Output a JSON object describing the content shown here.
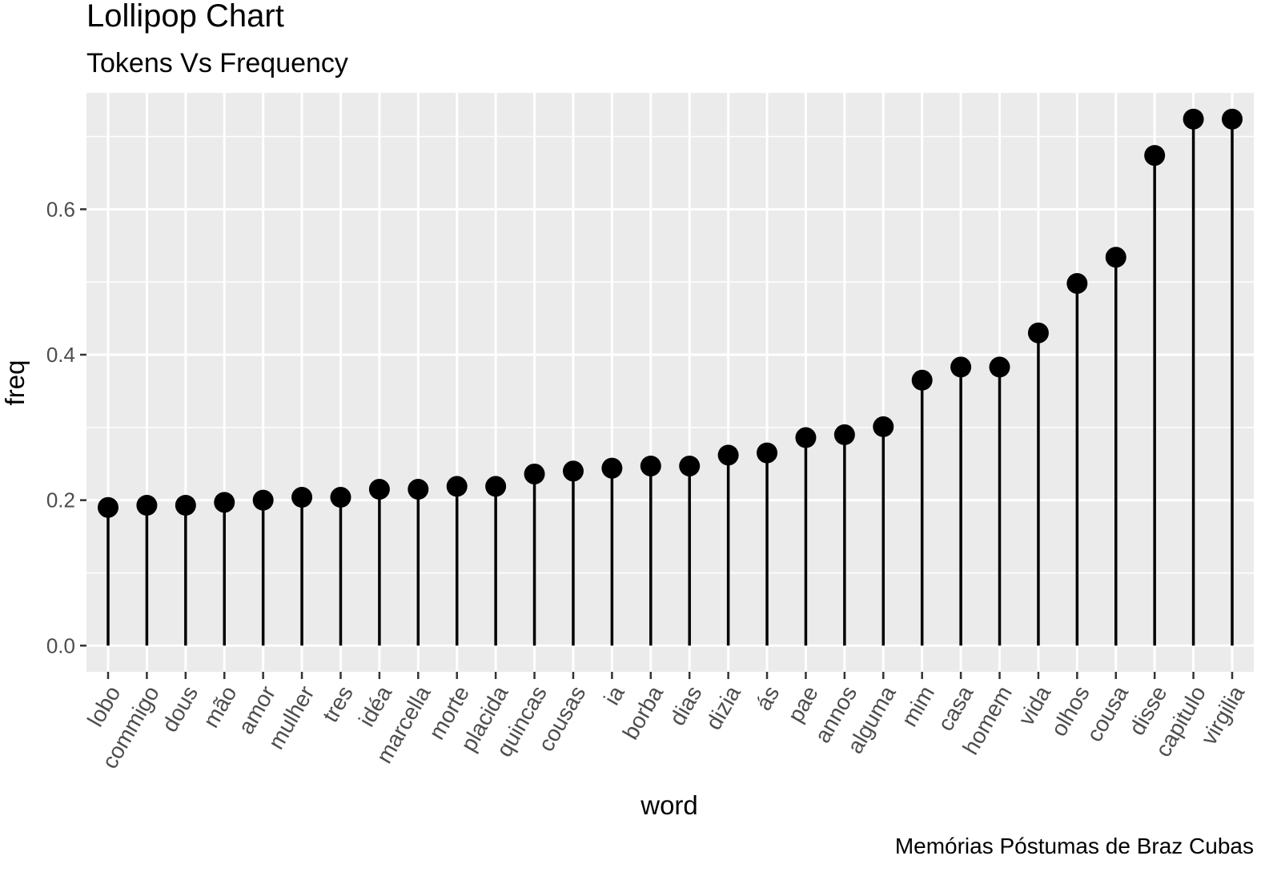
{
  "chart_data": {
    "type": "lollipop",
    "title": "Lollipop Chart",
    "subtitle": "Tokens Vs Frequency",
    "xlabel": "word",
    "ylabel": "freq",
    "caption": "Memórias Póstumas de Braz Cubas",
    "categories": [
      "lobo",
      "commigo",
      "dous",
      "mão",
      "amor",
      "mulher",
      "tres",
      "idéa",
      "marcella",
      "morte",
      "placida",
      "quincas",
      "cousas",
      "ia",
      "borba",
      "dias",
      "dizia",
      "ás",
      "pae",
      "annos",
      "alguma",
      "mim",
      "casa",
      "homem",
      "vida",
      "olhos",
      "cousa",
      "disse",
      "capitulo",
      "virgilia"
    ],
    "values": [
      0.19,
      0.193,
      0.193,
      0.197,
      0.2,
      0.204,
      0.204,
      0.215,
      0.215,
      0.219,
      0.219,
      0.236,
      0.24,
      0.244,
      0.247,
      0.247,
      0.262,
      0.265,
      0.286,
      0.29,
      0.301,
      0.365,
      0.383,
      0.383,
      0.43,
      0.498,
      0.534,
      0.674,
      0.724,
      0.724
    ],
    "ylim": [
      -0.036,
      0.76
    ],
    "yticks": [
      0.0,
      0.2,
      0.4,
      0.6
    ],
    "ytick_labels": [
      "0.0",
      "0.2",
      "0.4",
      "0.6"
    ],
    "grid": true,
    "panel_color": "#ebebeb",
    "grid_color": "#ffffff",
    "mark_color": "#000000"
  }
}
